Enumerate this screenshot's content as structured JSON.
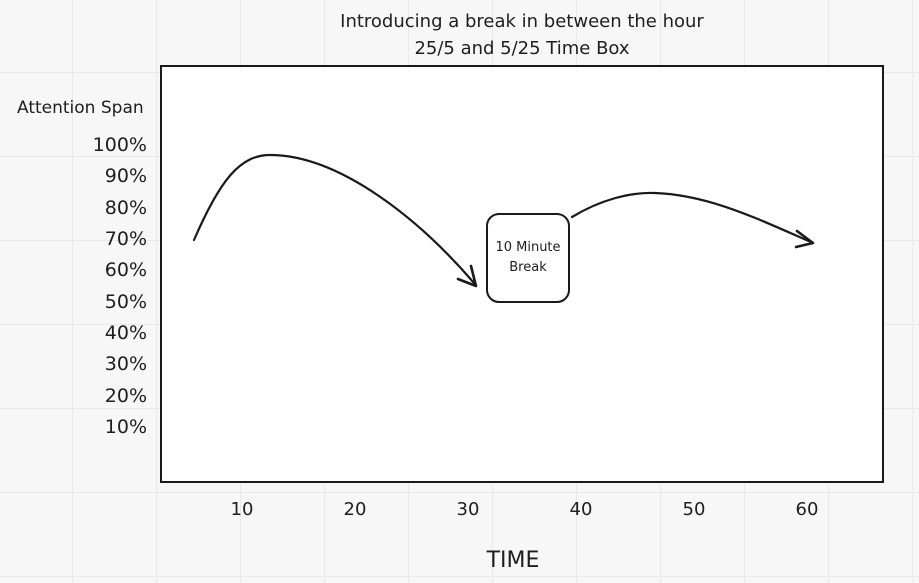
{
  "title": {
    "line1": "Introducing a break in between the hour",
    "line2": "25/5 and 5/25 Time Box"
  },
  "y_axis": {
    "label": "Attention Span",
    "ticks": [
      "100%",
      "90%",
      "80%",
      "70%",
      "60%",
      "50%",
      "40%",
      "30%",
      "20%",
      "10%"
    ]
  },
  "x_axis": {
    "label": "TIME",
    "ticks": [
      "10",
      "20",
      "30",
      "40",
      "50",
      "60"
    ]
  },
  "break_box": {
    "line1": "10 Minute",
    "line2": "Break"
  }
}
